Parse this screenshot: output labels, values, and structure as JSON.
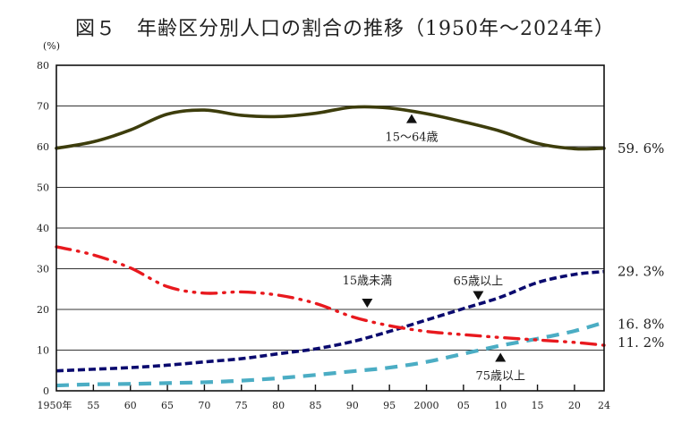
{
  "chart_data": {
    "type": "line",
    "title": "図５　年齢区分別人口の割合の推移（1950年～2024年）",
    "ylabel": "(%)",
    "xlabel": "",
    "ylim": [
      0,
      80
    ],
    "xlim": [
      1950,
      2024
    ],
    "grid": true,
    "y_ticks": [
      0,
      10,
      20,
      30,
      40,
      50,
      60,
      70,
      80
    ],
    "x_ticks": [
      {
        "year": 1950,
        "label": "1950年"
      },
      {
        "year": 1955,
        "label": "55"
      },
      {
        "year": 1960,
        "label": "60"
      },
      {
        "year": 1965,
        "label": "65"
      },
      {
        "year": 1970,
        "label": "70"
      },
      {
        "year": 1975,
        "label": "75"
      },
      {
        "year": 1980,
        "label": "80"
      },
      {
        "year": 1985,
        "label": "85"
      },
      {
        "year": 1990,
        "label": "90"
      },
      {
        "year": 1995,
        "label": "95"
      },
      {
        "year": 2000,
        "label": "2000"
      },
      {
        "year": 2005,
        "label": "05"
      },
      {
        "year": 2010,
        "label": "10"
      },
      {
        "year": 2015,
        "label": "15"
      },
      {
        "year": 2020,
        "label": "20"
      },
      {
        "year": 2024,
        "label": "24"
      }
    ],
    "x": [
      1950,
      1955,
      1960,
      1965,
      1970,
      1975,
      1980,
      1985,
      1990,
      1995,
      2000,
      2005,
      2010,
      2015,
      2020,
      2024
    ],
    "series": [
      {
        "key": "age15to64",
        "name": "15～64歳",
        "color": "#3d3d0c",
        "style": "solid",
        "values": [
          59.6,
          61.2,
          64.1,
          68.0,
          69.0,
          67.7,
          67.4,
          68.2,
          69.7,
          69.5,
          68.1,
          66.1,
          63.8,
          60.8,
          59.5,
          59.6
        ],
        "end_label": "59. 6%"
      },
      {
        "key": "under15",
        "name": "15歳未満",
        "color": "#e8191e",
        "style": "dash-dot-dot",
        "values": [
          35.4,
          33.4,
          30.2,
          25.6,
          24.0,
          24.3,
          23.5,
          21.5,
          18.2,
          16.0,
          14.6,
          13.8,
          13.1,
          12.5,
          11.9,
          11.2
        ],
        "end_label": "11. 2%"
      },
      {
        "key": "age65plus",
        "name": "65歳以上",
        "color": "#0a0a6e",
        "style": "short-dash",
        "values": [
          4.9,
          5.3,
          5.7,
          6.3,
          7.1,
          7.9,
          9.1,
          10.3,
          12.1,
          14.6,
          17.4,
          20.2,
          23.0,
          26.6,
          28.6,
          29.3
        ],
        "end_label": "29. 3%"
      },
      {
        "key": "age75plus",
        "name": "75歳以上",
        "color": "#4badc4",
        "style": "long-dash",
        "values": [
          1.3,
          1.6,
          1.7,
          1.9,
          2.1,
          2.5,
          3.1,
          3.9,
          4.8,
          5.7,
          7.1,
          9.1,
          11.1,
          12.8,
          14.7,
          16.8
        ],
        "end_label": "16. 8%"
      }
    ],
    "annotations": [
      {
        "text": "15～64歳",
        "series": "age15to64",
        "year": 1998,
        "marker": "up-triangle",
        "position": "below"
      },
      {
        "text": "15歳未満",
        "series": "under15",
        "year": 1992,
        "marker": "down-triangle",
        "position": "above"
      },
      {
        "text": "65歳以上",
        "series": "age65plus",
        "year": 2007,
        "marker": "down-triangle",
        "position": "above"
      },
      {
        "text": "75歳以上",
        "series": "age75plus",
        "year": 2010,
        "marker": "up-triangle",
        "position": "below"
      }
    ]
  }
}
